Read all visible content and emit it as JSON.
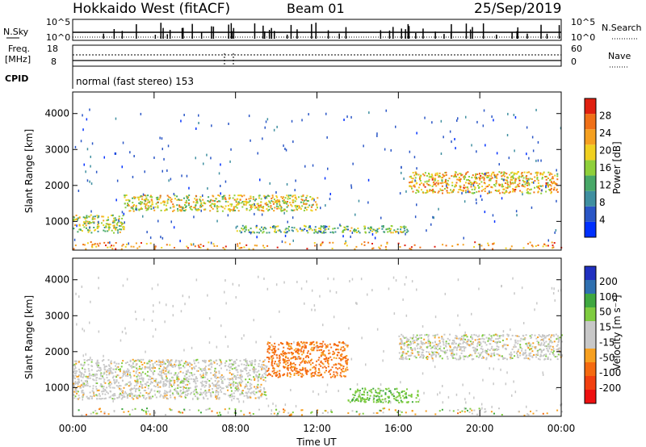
{
  "header": {
    "station": "Hokkaido West (fitACF)",
    "beam": "Beam 01",
    "date": "25/Sep/2019"
  },
  "summary": {
    "nsky_label": "N.Sky",
    "nsky_ticks": [
      "10^5",
      "10^0"
    ],
    "nsearch_label": "N.Search",
    "freq_label_1": "Freq.",
    "freq_label_2": "[MHz]",
    "freq_ticks": [
      "18",
      "8"
    ],
    "nave_label": "Nave",
    "nave_ticks": [
      "60",
      "0"
    ],
    "cpid_label": "CPID",
    "cpid_text": "normal (fast stereo) 153"
  },
  "colors": {
    "power": [
      "#0030ff",
      "#2a56c6",
      "#3f8fa0",
      "#48a868",
      "#8fd03a",
      "#f0d020",
      "#f5a020",
      "#f07018",
      "#e02010"
    ],
    "velocity": [
      "#ee1010",
      "#f24010",
      "#f56a10",
      "#f7a020",
      "#c8c8c8",
      "#c8c8c8",
      "#7fcc40",
      "#3fa840",
      "#2f70b0",
      "#2030c0"
    ]
  },
  "chart_data": [
    {
      "type": "heatmap",
      "title": "",
      "ylabel": "Slant Range [km]",
      "xlabel": "",
      "xlim": [
        "00:00",
        "24:00"
      ],
      "ylim": [
        200,
        4600
      ],
      "yticks": [
        "1000",
        "2000",
        "3000",
        "4000"
      ],
      "colorbar": {
        "label": "Power [dB]",
        "ticks": [
          "4",
          "8",
          "12",
          "16",
          "20",
          "24",
          "28"
        ],
        "range": [
          0,
          30
        ]
      },
      "features": [
        {
          "start_h": 0.0,
          "end_h": 2.5,
          "range_km_start": 700,
          "range_km_end": 1200,
          "power_db": 16
        },
        {
          "start_h": 2.5,
          "end_h": 12.0,
          "range_km_start": 1300,
          "range_km_end": 1750,
          "power_db": 18
        },
        {
          "start_h": 8.0,
          "end_h": 13.5,
          "range_km_start": 700,
          "range_km_end": 900,
          "power_db": 12
        },
        {
          "start_h": 13.5,
          "end_h": 16.5,
          "range_km_start": 700,
          "range_km_end": 900,
          "power_db": 14
        },
        {
          "start_h": 16.5,
          "end_h": 23.8,
          "range_km_start": 1800,
          "range_km_end": 2400,
          "power_db": 20
        }
      ]
    },
    {
      "type": "heatmap",
      "title": "",
      "ylabel": "Slant Range [km]",
      "xlabel": "Time UT",
      "xlim": [
        "00:00",
        "24:00"
      ],
      "ylim": [
        200,
        4600
      ],
      "xticks": [
        "00:00",
        "04:00",
        "08:00",
        "12:00",
        "16:00",
        "20:00",
        "00:00"
      ],
      "yticks": [
        "1000",
        "2000",
        "3000",
        "4000"
      ],
      "colorbar": {
        "label": "Velocity [m s⁻¹]",
        "ticks": [
          "200",
          "100",
          "50",
          "15",
          "-15",
          "-50",
          "-100",
          "-200"
        ],
        "range": [
          -250,
          250
        ]
      },
      "features": [
        {
          "start_h": 9.5,
          "end_h": 13.5,
          "range_km_start": 1300,
          "range_km_end": 2300,
          "velocity_ms": -60
        },
        {
          "start_h": 13.5,
          "end_h": 17.0,
          "range_km_start": 600,
          "range_km_end": 1000,
          "velocity_ms": 40
        },
        {
          "start_h": 16.0,
          "end_h": 24.0,
          "range_km_start": 1800,
          "range_km_end": 2500,
          "velocity_ms": 0
        },
        {
          "start_h": 0.0,
          "end_h": 9.5,
          "range_km_start": 700,
          "range_km_end": 1800,
          "velocity_ms": 0
        }
      ]
    }
  ]
}
